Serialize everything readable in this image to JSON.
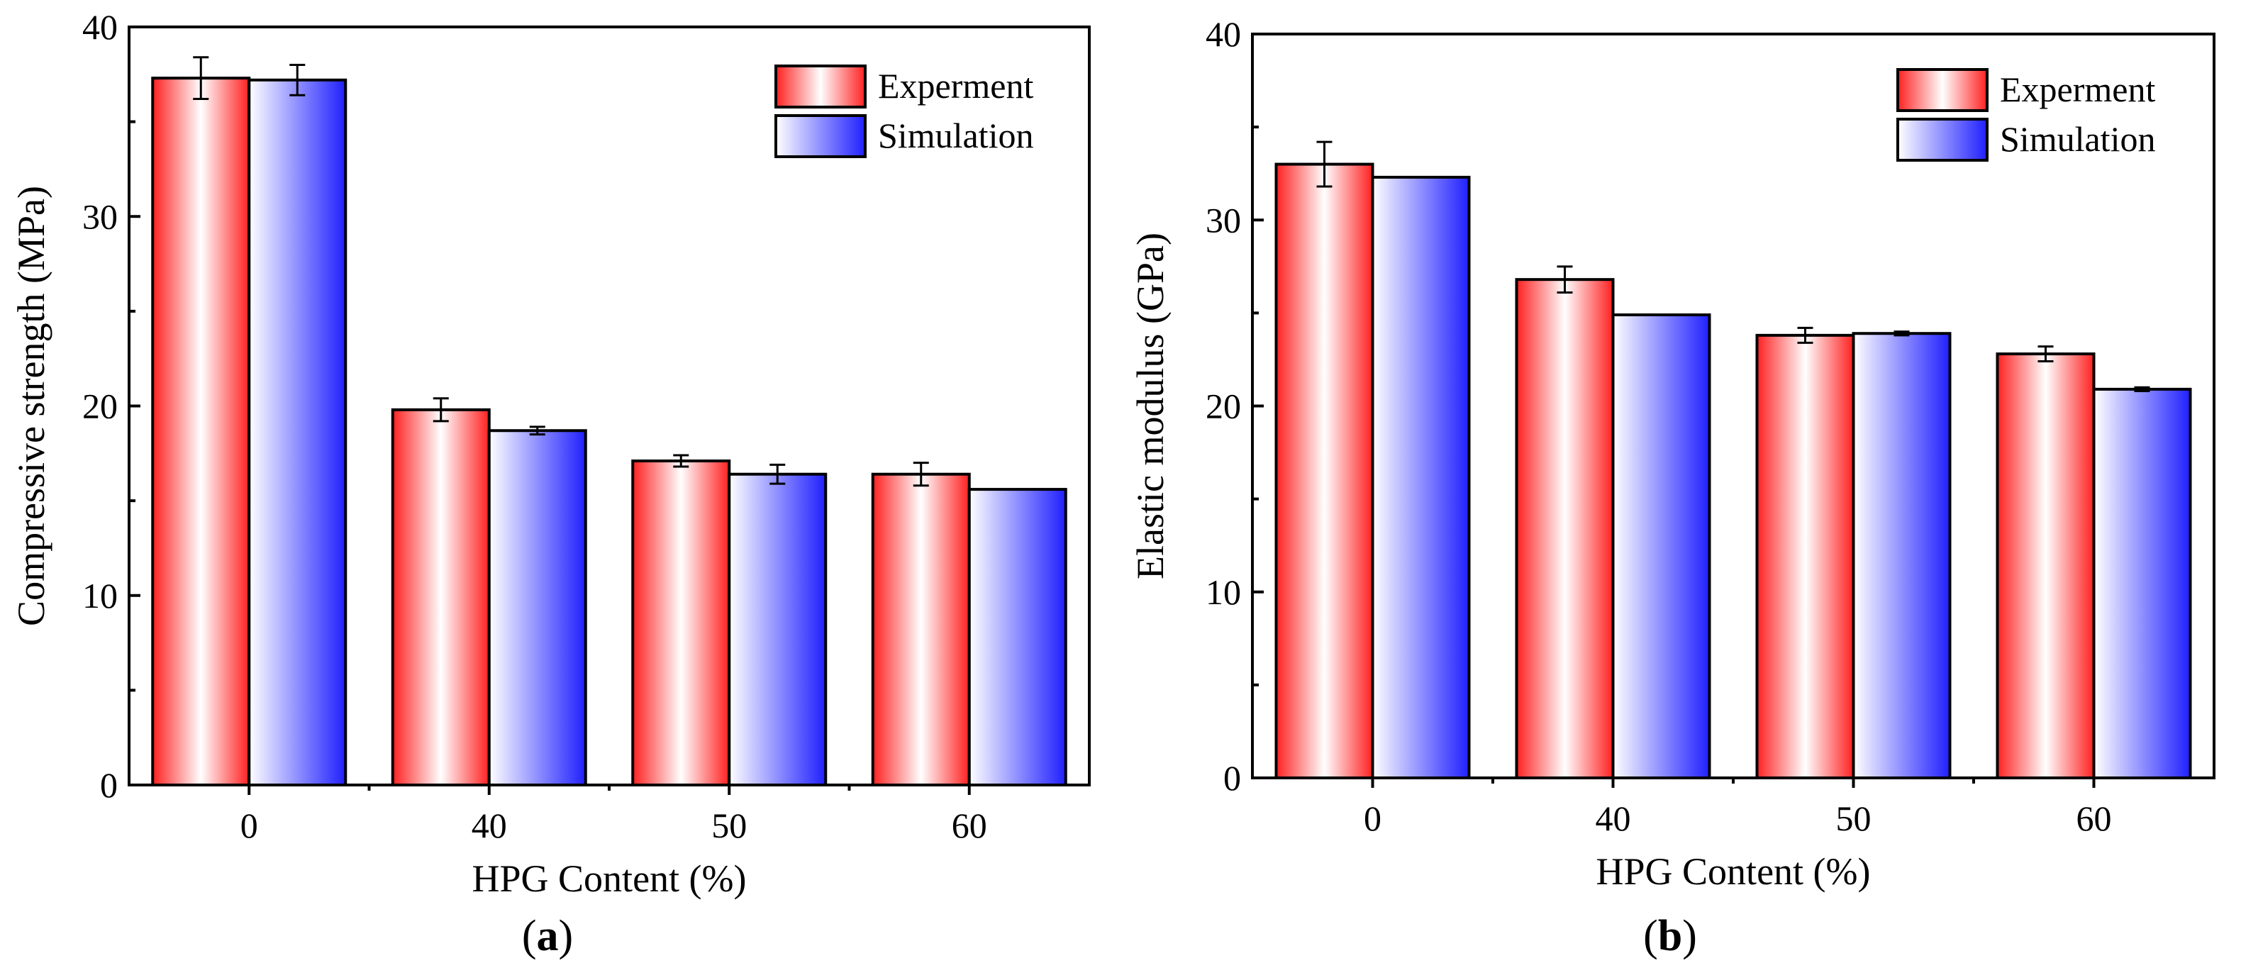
{
  "chart_data": [
    {
      "type": "bar",
      "panel_label": "a",
      "xlabel": "HPG Content (%)",
      "ylabel": "Compressive strength (MPa)",
      "categories": [
        "0",
        "40",
        "50",
        "60"
      ],
      "ylim": [
        0,
        40
      ],
      "yticks": [
        "0",
        "10",
        "20",
        "30",
        "40"
      ],
      "legend_position": "top-right",
      "series": [
        {
          "name": "Experment",
          "values": [
            37.3,
            19.8,
            17.1,
            16.4
          ],
          "errors": [
            1.1,
            0.6,
            0.3,
            0.6
          ]
        },
        {
          "name": "Simulation",
          "values": [
            37.2,
            18.7,
            16.4,
            15.6
          ],
          "errors": [
            0.8,
            0.2,
            0.5,
            0
          ]
        }
      ]
    },
    {
      "type": "bar",
      "panel_label": "b",
      "xlabel": "HPG Content (%)",
      "ylabel": "Elastic modulus (GPa)",
      "categories": [
        "0",
        "40",
        "50",
        "60"
      ],
      "ylim": [
        0,
        40
      ],
      "yticks": [
        "0",
        "10",
        "20",
        "30",
        "40"
      ],
      "legend_position": "top-right",
      "series": [
        {
          "name": "Experment",
          "values": [
            33.0,
            26.8,
            23.8,
            22.8
          ],
          "errors": [
            1.2,
            0.7,
            0.4,
            0.4
          ]
        },
        {
          "name": "Simulation",
          "values": [
            32.3,
            24.9,
            23.9,
            20.9
          ],
          "errors": [
            0,
            0,
            0.1,
            0.1
          ]
        }
      ]
    }
  ],
  "colors": {
    "experiment_edge": "#ff2020",
    "simulation_edge": "#2020ff",
    "center": "#ffffff",
    "axis": "#000000"
  }
}
